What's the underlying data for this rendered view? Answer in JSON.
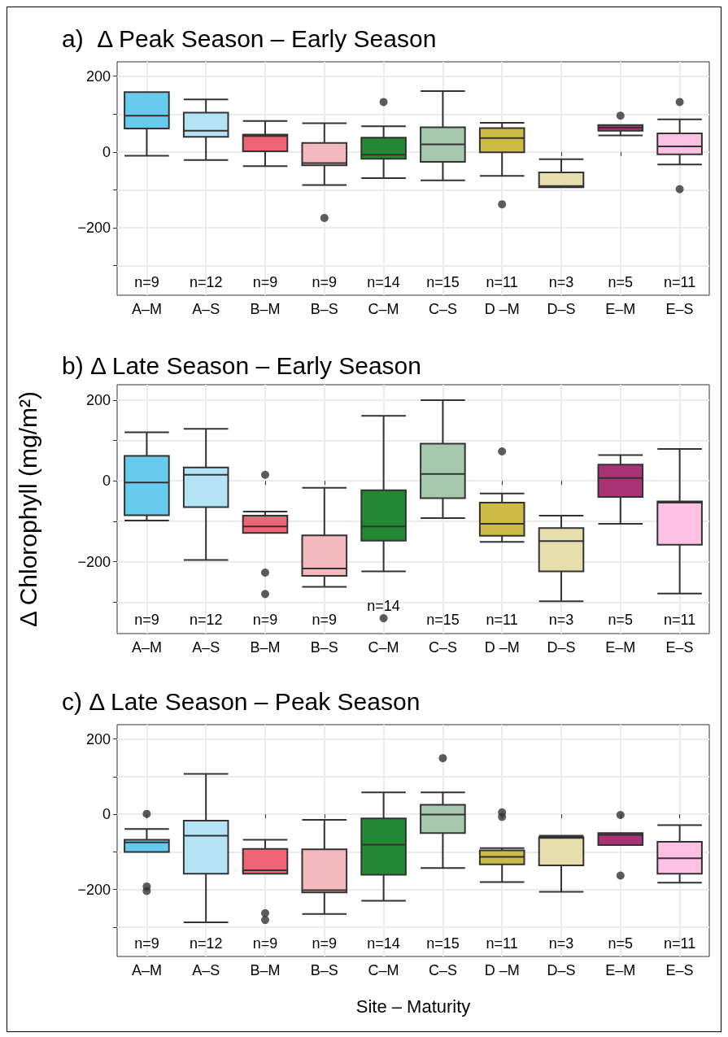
{
  "chart_data": [
    {
      "type": "box",
      "title": "a)  Δ Peak Season – Early Season",
      "categories": [
        "A–M",
        "A–S",
        "B–M",
        "B–S",
        "C–M",
        "C–S",
        "D –M",
        "D–S",
        "E–M",
        "E–S"
      ],
      "colors": [
        "#66cbed",
        "#b3e3f4",
        "#ee6575",
        "#f4b8bf",
        "#228833",
        "#a6c8ac",
        "#ccbb44",
        "#e6dfad",
        "#aa3377",
        "#ffc1e3"
      ],
      "boxes": [
        {
          "low": -10,
          "q1": 62,
          "median": 96,
          "q3": 158,
          "high": 158
        },
        {
          "low": -21,
          "q1": 40,
          "median": 56,
          "q3": 104,
          "high": 139
        },
        {
          "low": -37,
          "q1": 2,
          "median": 42,
          "q3": 46,
          "high": 82
        },
        {
          "low": -87,
          "q1": -35,
          "median": -29,
          "q3": 24,
          "high": 76,
          "outliers": [
            -174
          ]
        },
        {
          "low": -69,
          "q1": -18,
          "median": -7,
          "q3": 38,
          "high": 68,
          "outliers": [
            132
          ]
        },
        {
          "low": -75,
          "q1": -26,
          "median": 20,
          "q3": 65,
          "high": 161
        },
        {
          "low": -63,
          "q1": -1,
          "median": 37,
          "q3": 63,
          "high": 77,
          "outliers": [
            -138
          ]
        },
        {
          "low": -93,
          "q1": -93,
          "median": -90,
          "q3": -54,
          "high": -19
        },
        {
          "low": 44,
          "q1": 56,
          "median": 64,
          "q3": 71,
          "high": 71,
          "outliers": [
            96
          ]
        },
        {
          "low": -33,
          "q1": -6,
          "median": 15,
          "q3": 49,
          "high": 86,
          "outliers": [
            132,
            -98
          ]
        }
      ],
      "annotations": [
        "n=9",
        "n=12",
        "n=9",
        "n=9",
        "n=14",
        "n=15",
        "n=11",
        "n=3",
        "n=5",
        "n=11"
      ],
      "ylim": [
        -378,
        238
      ],
      "yticks": [
        {
          "value": -300,
          "label": null
        },
        -200,
        {
          "value": -100,
          "label": null
        },
        0,
        {
          "value": 100,
          "label": null
        },
        200
      ],
      "grid": true
    },
    {
      "type": "box",
      "title": "b) Δ Late Season – Early Season",
      "ylabel": "Δ Chlorophyll (mg/m²)",
      "categories": [
        "A–M",
        "A–S",
        "B–M",
        "B–S",
        "C–M",
        "C–S",
        "D –M",
        "D–S",
        "E–M",
        "E–S"
      ],
      "colors": [
        "#66cbed",
        "#b3e3f4",
        "#ee6575",
        "#f4b8bf",
        "#228833",
        "#a6c8ac",
        "#ccbb44",
        "#e6dfad",
        "#aa3377",
        "#ffc1e3"
      ],
      "boxes": [
        {
          "low": -98,
          "q1": -85,
          "median": -4,
          "q3": 62,
          "high": 120
        },
        {
          "low": -196,
          "q1": -65,
          "median": 15,
          "q3": 33,
          "high": 129
        },
        {
          "low": -129,
          "q1": -129,
          "median": -113,
          "q3": -86,
          "high": -76,
          "outliers": [
            15,
            -227,
            -280
          ]
        },
        {
          "low": -262,
          "q1": -235,
          "median": -217,
          "q3": -135,
          "high": -17
        },
        {
          "low": -224,
          "q1": -148,
          "median": -113,
          "q3": -23,
          "high": 161,
          "outliers": [
            -340
          ]
        },
        {
          "low": -92,
          "q1": -43,
          "median": 17,
          "q3": 92,
          "high": 200
        },
        {
          "low": -151,
          "q1": -136,
          "median": -106,
          "q3": -54,
          "high": -31,
          "outliers": [
            73
          ]
        },
        {
          "low": -298,
          "q1": -224,
          "median": -149,
          "q3": -117,
          "high": -86
        },
        {
          "low": -106,
          "q1": -40,
          "median": 7,
          "q3": 40,
          "high": 64
        },
        {
          "low": -279,
          "q1": -158,
          "median": -54,
          "q3": -51,
          "high": 79
        }
      ],
      "annotations": [
        "n=9",
        "n=12",
        "n=9",
        "n=9",
        "n=14",
        "n=15",
        "n=11",
        "n=3",
        "n=5",
        "n=11"
      ],
      "ylim": [
        -378,
        238
      ],
      "yticks": [
        {
          "value": -300,
          "label": null
        },
        -200,
        {
          "value": -100,
          "label": null
        },
        0,
        {
          "value": 100,
          "label": null
        },
        200
      ],
      "grid": true
    },
    {
      "type": "box",
      "title": "c) Δ Late Season – Peak Season",
      "xlabel": "Site – Maturity",
      "categories": [
        "A–M",
        "A–S",
        "B–M",
        "B–S",
        "C–M",
        "C–S",
        "D –M",
        "D–S",
        "E–M",
        "E–S"
      ],
      "colors": [
        "#66cbed",
        "#b3e3f4",
        "#ee6575",
        "#f4b8bf",
        "#228833",
        "#a6c8ac",
        "#ccbb44",
        "#e6dfad",
        "#aa3377",
        "#ffc1e3"
      ],
      "boxes": [
        {
          "low": -100,
          "q1": -100,
          "median": -75,
          "q3": -68,
          "high": -39,
          "outliers": [
            1,
            -192,
            -204
          ]
        },
        {
          "low": -287,
          "q1": -158,
          "median": -57,
          "q3": -17,
          "high": 107
        },
        {
          "low": -158,
          "q1": -158,
          "median": -149,
          "q3": -92,
          "high": -68,
          "outliers": [
            -263,
            -281
          ]
        },
        {
          "low": -265,
          "q1": -208,
          "median": -202,
          "q3": -93,
          "high": -15
        },
        {
          "low": -230,
          "q1": -161,
          "median": -81,
          "q3": -11,
          "high": 58
        },
        {
          "low": -143,
          "q1": -50,
          "median": -1,
          "q3": 25,
          "high": 58,
          "outliers": [
            149
          ]
        },
        {
          "low": -180,
          "q1": -133,
          "median": -113,
          "q3": -96,
          "high": -90,
          "outliers": [
            5,
            -7
          ]
        },
        {
          "low": -206,
          "q1": -136,
          "median": -63,
          "q3": -61,
          "high": -57
        },
        {
          "low": -82,
          "q1": -82,
          "median": -55,
          "q3": -50,
          "high": -50,
          "outliers": [
            -2,
            -163
          ]
        },
        {
          "low": -182,
          "q1": -158,
          "median": -117,
          "q3": -73,
          "high": -29
        }
      ],
      "annotations": [
        "n=9",
        "n=12",
        "n=9",
        "n=9",
        "n=14",
        "n=15",
        "n=11",
        "n=3",
        "n=5",
        "n=11"
      ],
      "ylim": [
        -378,
        238
      ],
      "yticks": [
        {
          "value": -300,
          "label": null
        },
        -200,
        {
          "value": -100,
          "label": null
        },
        0,
        {
          "value": 100,
          "label": null
        },
        200
      ],
      "grid": true
    }
  ]
}
